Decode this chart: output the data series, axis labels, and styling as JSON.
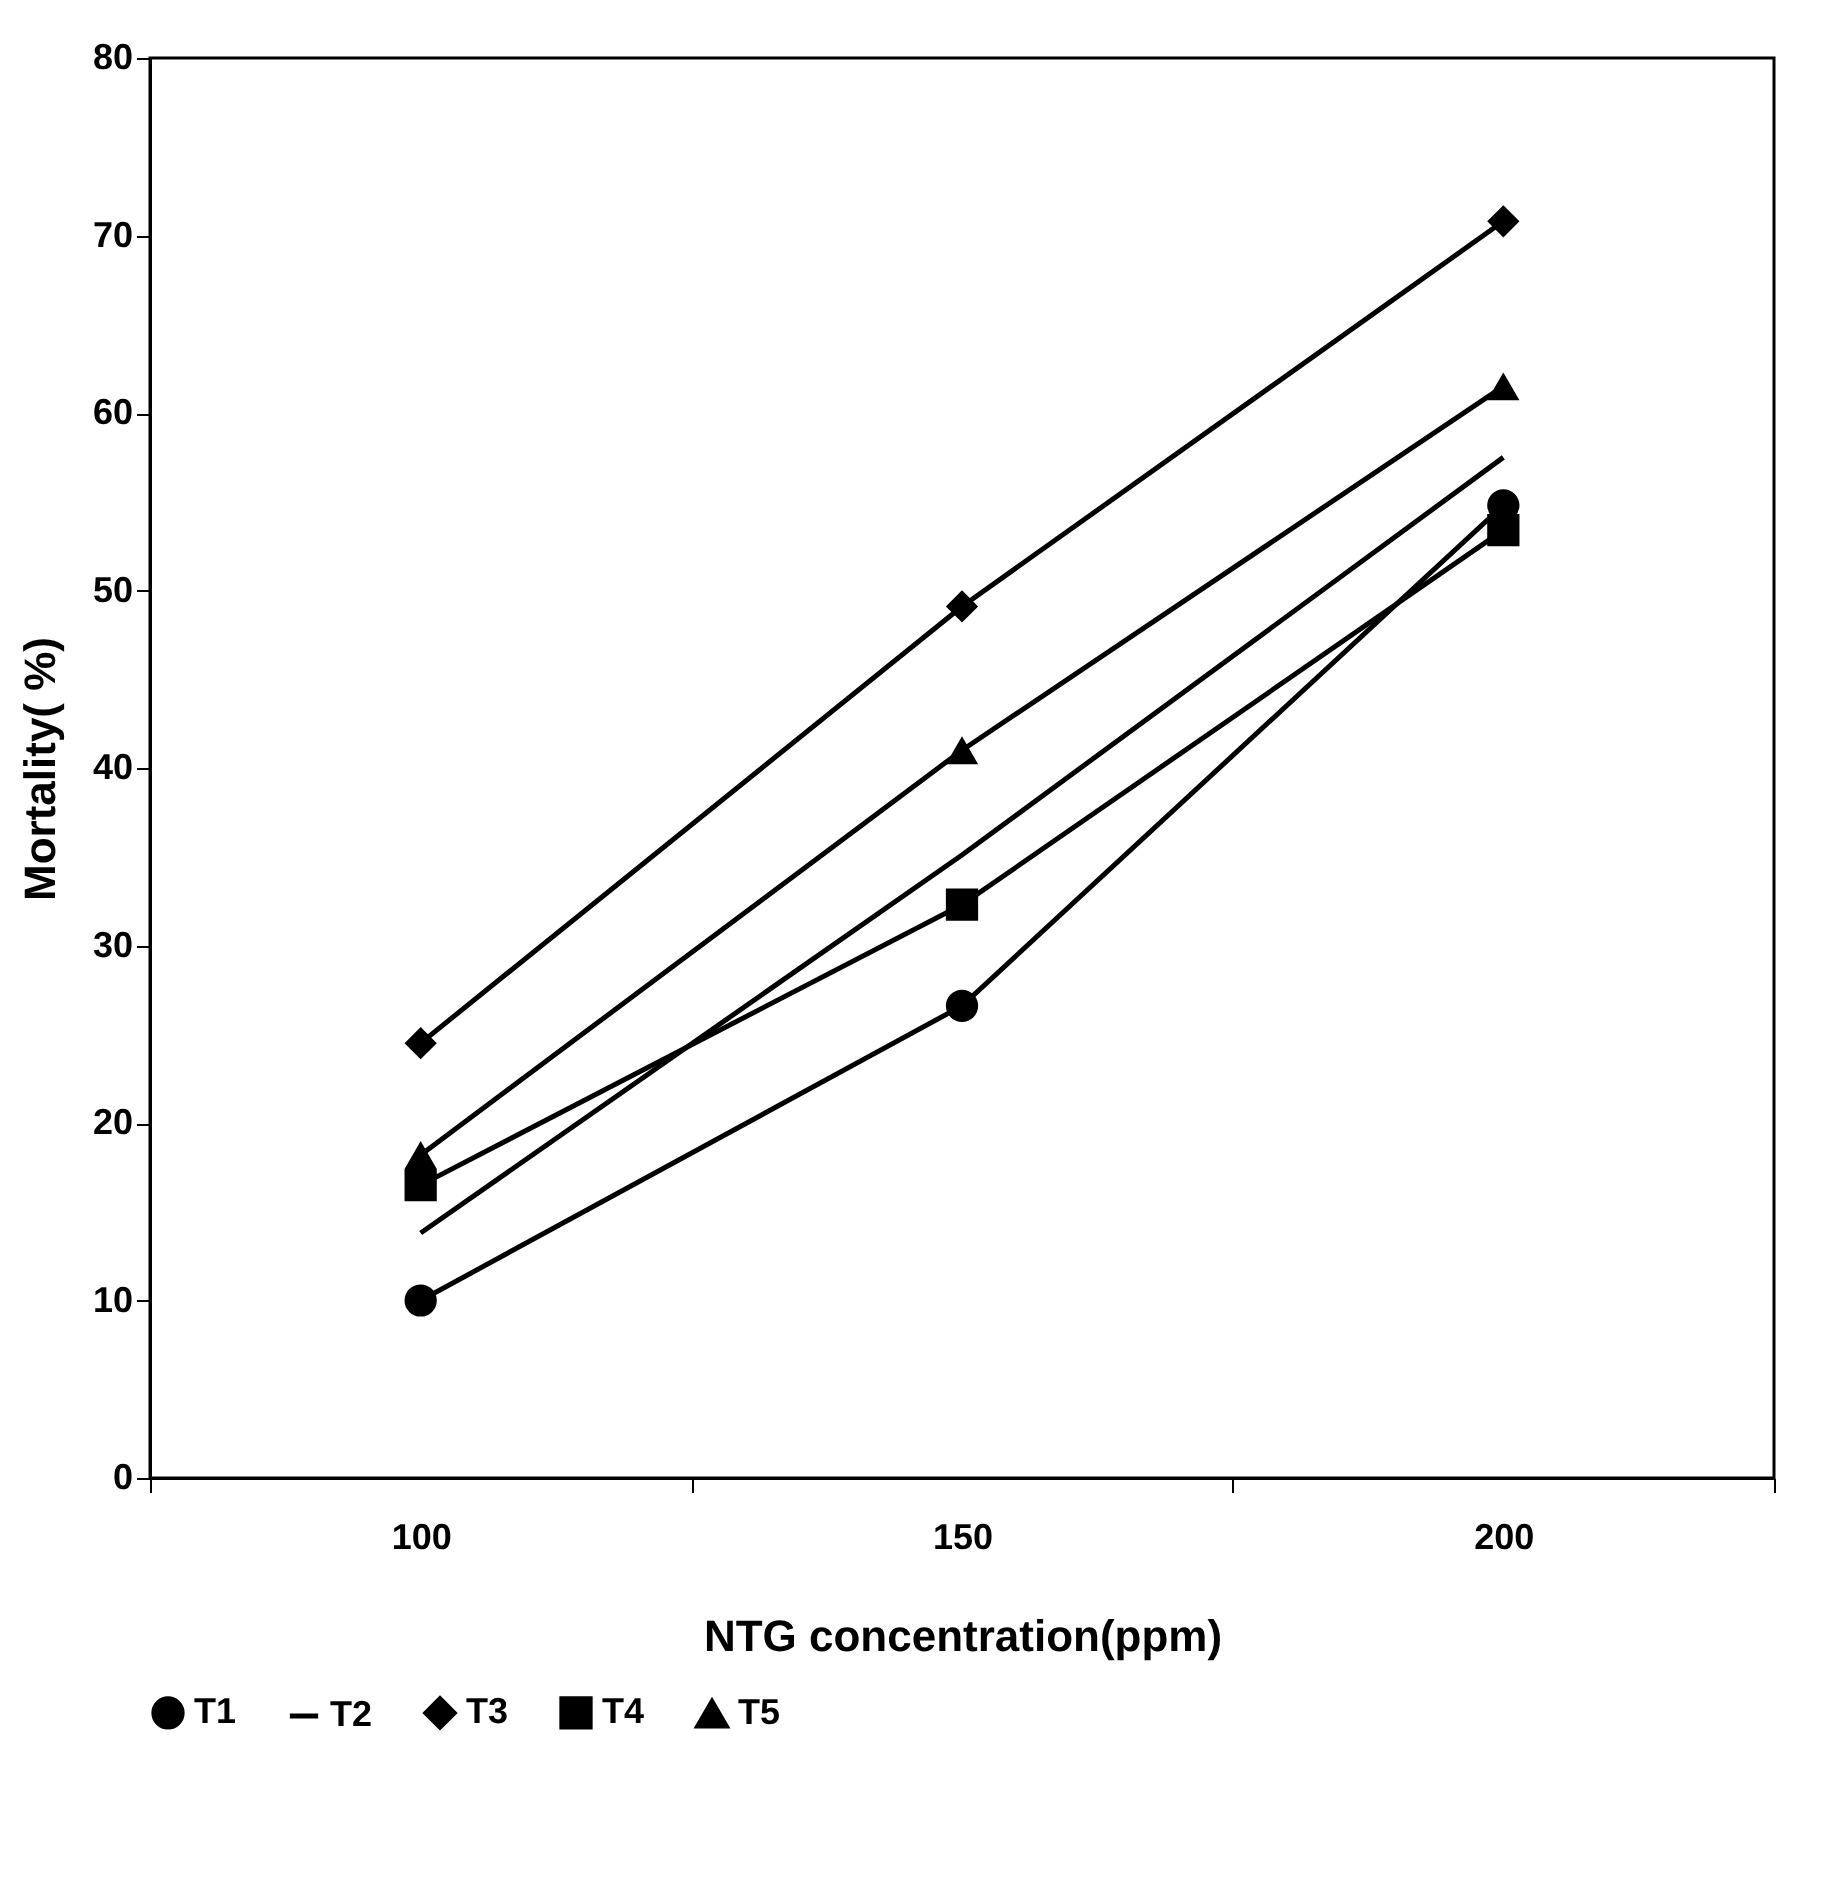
{
  "chart_data": {
    "type": "line",
    "xlabel": "NTG concentration(ppm)",
    "ylabel": "Mortality( %)",
    "categories": [
      "100",
      "150",
      "200"
    ],
    "ylim": [
      0,
      80
    ],
    "yticks": [
      0,
      10,
      20,
      30,
      40,
      50,
      60,
      70,
      80
    ],
    "grid": false,
    "legend": "bottom",
    "line_style": "solid",
    "series": [
      {
        "name": "T1",
        "color": "#000000",
        "marker": "circle",
        "values": [
          10,
          26.6,
          54.8
        ]
      },
      {
        "name": "T2",
        "color": "#000000",
        "values": [
          13.8,
          35.1,
          57.5
        ]
      },
      {
        "name": "T3",
        "color": "#000000",
        "marker": "diamond",
        "values": [
          24.5,
          49.1,
          70.8
        ]
      },
      {
        "name": "T4",
        "color": "#000000",
        "marker": "square",
        "values": [
          16.5,
          32.3,
          53.4
        ]
      },
      {
        "name": "T5",
        "color": "#000000",
        "marker": "triangle",
        "values": [
          18.2,
          41,
          61.5
        ]
      }
    ]
  }
}
